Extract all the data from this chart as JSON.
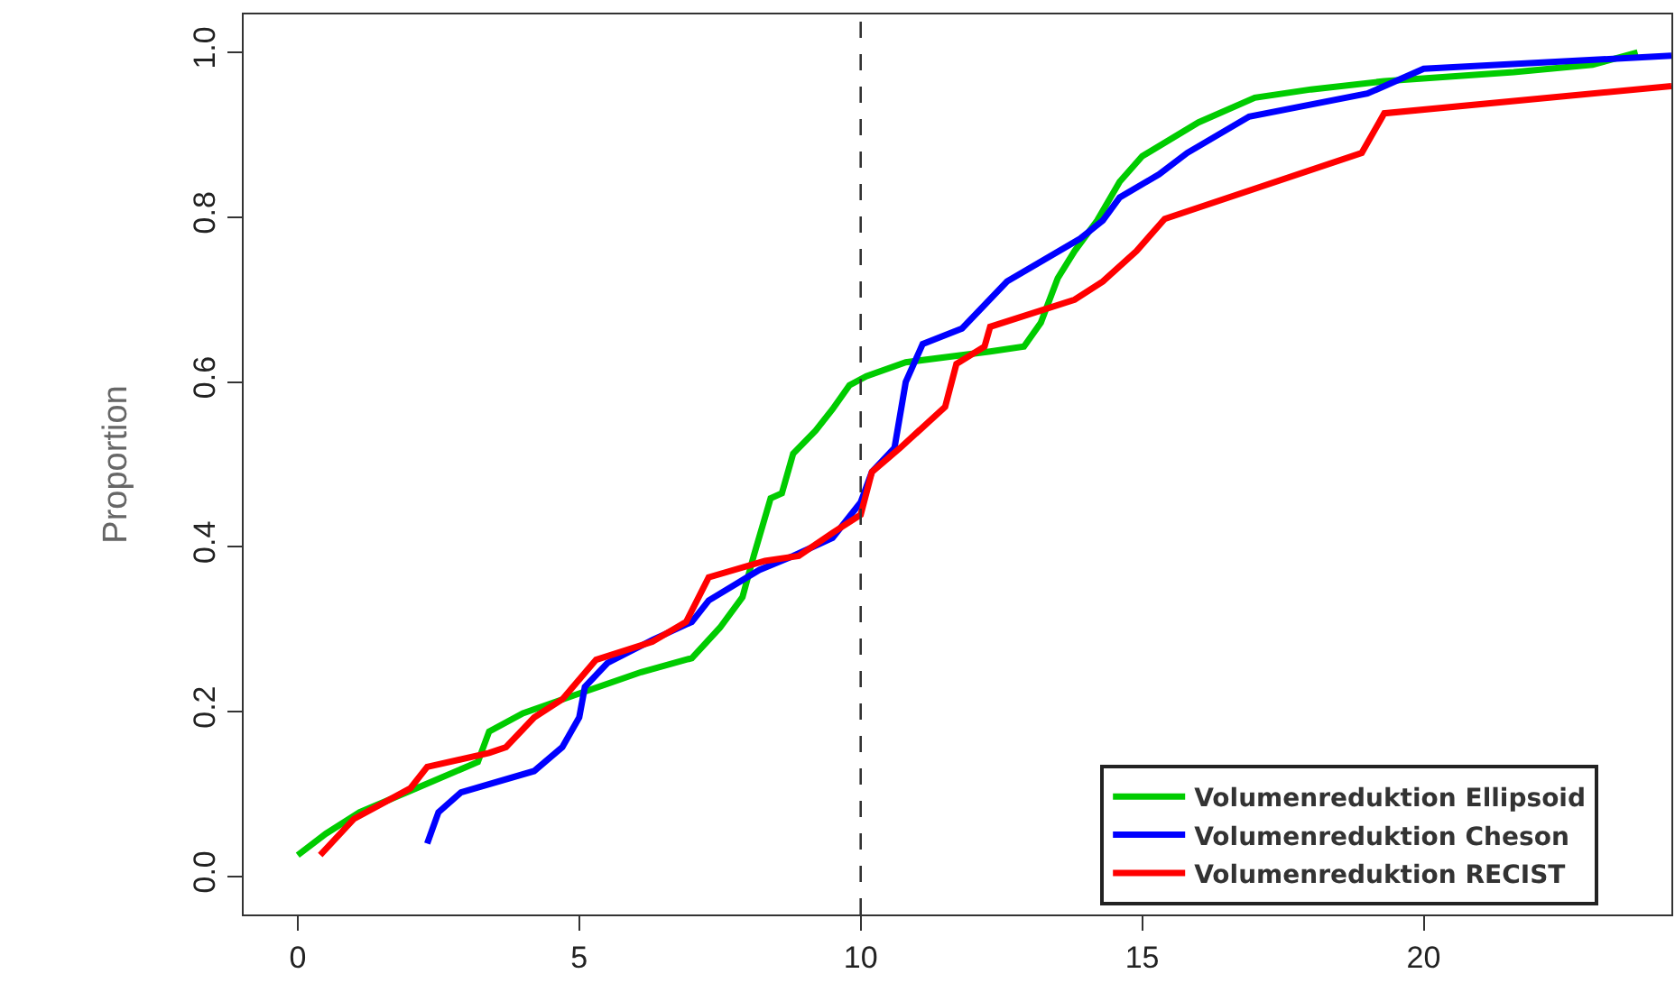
{
  "chart_data": {
    "type": "line",
    "ylabel": "Proportion",
    "xlim": [
      -0.96,
      24.4
    ],
    "ylim": [
      -0.046,
      1.046
    ],
    "xticks": [
      0,
      5,
      10,
      15,
      20
    ],
    "yticks": [
      {
        "value": 0,
        "label": "0.0"
      },
      {
        "value": 0.2,
        "label": "0.2"
      },
      {
        "value": 0.4,
        "label": "0.4"
      },
      {
        "value": 0.6,
        "label": "0.6"
      },
      {
        "value": 0.8,
        "label": "0.8"
      },
      {
        "value": 1.0,
        "label": "1.0"
      }
    ],
    "grid": false,
    "legend": "bottom right",
    "marker": "none",
    "line_style": "solid",
    "ref_lines": [
      {
        "axis": "x",
        "value": 10,
        "color": "#333333",
        "line_style": "dashed"
      }
    ],
    "series": [
      {
        "name": "Volumenreduktion Ellipsoid",
        "color": "#00cc00",
        "x": [
          0,
          0.5,
          1.1,
          2.1,
          3.2,
          3.4,
          4.0,
          5.0,
          6.1,
          7.0,
          7.5,
          7.9,
          8.1,
          8.4,
          8.6,
          8.8,
          9.2,
          9.5,
          9.8,
          10.1,
          10.8,
          12.3,
          12.9,
          13.2,
          13.5,
          13.8,
          14.2,
          14.6,
          15.0,
          16.0,
          17.0,
          18.0,
          19.3,
          21.6,
          23.0,
          23.8
        ],
        "values": [
          0.026,
          0.052,
          0.078,
          0.107,
          0.139,
          0.176,
          0.198,
          0.222,
          0.248,
          0.265,
          0.302,
          0.339,
          0.389,
          0.459,
          0.465,
          0.513,
          0.541,
          0.567,
          0.596,
          0.607,
          0.624,
          0.637,
          0.643,
          0.672,
          0.726,
          0.759,
          0.796,
          0.843,
          0.874,
          0.915,
          0.945,
          0.955,
          0.965,
          0.976,
          0.985,
          1.0
        ]
      },
      {
        "name": "Volumenreduktion Cheson",
        "color": "#0000ff",
        "x": [
          2.3,
          2.5,
          2.9,
          4.2,
          4.7,
          5.0,
          5.1,
          5.5,
          6.3,
          7.0,
          7.3,
          8.2,
          8.8,
          9.5,
          10.0,
          10.2,
          10.6,
          10.8,
          11.1,
          11.8,
          12.6,
          13.9,
          14.3,
          14.6,
          15.3,
          15.8,
          16.9,
          19.0,
          20.0,
          24.4
        ],
        "values": [
          0.04,
          0.078,
          0.102,
          0.128,
          0.157,
          0.193,
          0.23,
          0.259,
          0.287,
          0.309,
          0.335,
          0.372,
          0.389,
          0.411,
          0.454,
          0.491,
          0.52,
          0.6,
          0.646,
          0.665,
          0.722,
          0.774,
          0.796,
          0.824,
          0.852,
          0.878,
          0.922,
          0.95,
          0.98,
          0.996
        ]
      },
      {
        "name": "Volumenreduktion RECIST",
        "color": "#ff0000",
        "x": [
          0.4,
          1.0,
          2.0,
          2.3,
          3.4,
          3.7,
          4.2,
          4.7,
          5.3,
          6.3,
          6.9,
          7.3,
          8.3,
          8.9,
          9.5,
          10.0,
          10.2,
          10.7,
          11.5,
          11.7,
          12.2,
          12.3,
          13.8,
          14.3,
          14.9,
          15.4,
          18.9,
          19.3,
          24.4
        ],
        "values": [
          0.026,
          0.07,
          0.107,
          0.133,
          0.15,
          0.157,
          0.193,
          0.215,
          0.263,
          0.285,
          0.309,
          0.363,
          0.383,
          0.389,
          0.417,
          0.439,
          0.491,
          0.52,
          0.57,
          0.622,
          0.643,
          0.667,
          0.7,
          0.722,
          0.759,
          0.798,
          0.878,
          0.926,
          0.959
        ]
      }
    ]
  }
}
